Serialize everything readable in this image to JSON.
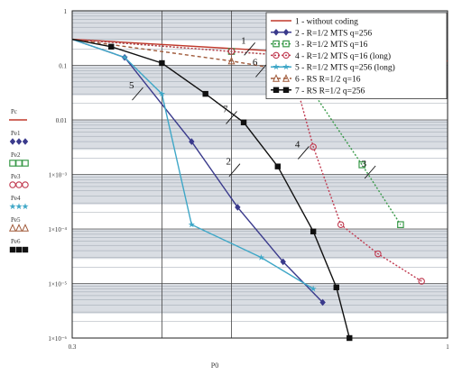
{
  "chart_data": {
    "type": "line",
    "title": "",
    "xlabel": "P0",
    "ylabel": "",
    "x_scale": "log",
    "y_scale": "log",
    "xlim": [
      0.3,
      1
    ],
    "ylim": [
      1e-06,
      1
    ],
    "grid": true,
    "legend_placement": "top-right",
    "x_tick_labels": [
      {
        "value": 0.3,
        "label": "0.3"
      },
      {
        "value": 1,
        "label": "1"
      }
    ],
    "y_tick_labels": [
      {
        "value": 1,
        "label": "1"
      },
      {
        "value": 0.1,
        "label": "0.1"
      },
      {
        "value": 0.01,
        "label": "0.01"
      },
      {
        "value": 0.001,
        "label": "1×10⁻³"
      },
      {
        "value": 0.0001,
        "label": "1×10⁻⁴"
      },
      {
        "value": 1e-05,
        "label": "1×10⁻⁵"
      },
      {
        "value": 1e-06,
        "label": "1×10⁻⁶"
      }
    ],
    "series": [
      {
        "name": "1 -  without coding",
        "color": "#c0392b",
        "dash": "solid",
        "marker": "none",
        "x": [
          0.3,
          1
        ],
        "y": [
          0.3,
          0.12
        ]
      },
      {
        "name": "2 - R=1/2 MTS  q=256",
        "color": "#3a3a8c",
        "dash": "solid",
        "marker": "diamond",
        "x": [
          0.3,
          0.355,
          0.44,
          0.51,
          0.59,
          0.67
        ],
        "y": [
          0.3,
          0.14,
          0.004,
          0.00025,
          2.5e-05,
          4.5e-06
        ]
      },
      {
        "name": "3 - R=1/2 MTS  q=16",
        "color": "#3a9a4a",
        "dash": "dot",
        "marker": "square-open",
        "x": [
          0.3,
          0.5,
          0.6,
          0.76,
          0.86
        ],
        "y": [
          0.3,
          0.18,
          0.15,
          0.0015,
          0.00012
        ]
      },
      {
        "name": "4 - R=1/2 MTS  q=16 (long)",
        "color": "#c0394f",
        "dash": "dot",
        "marker": "circle-open",
        "x": [
          0.3,
          0.5,
          0.6,
          0.65,
          0.71,
          0.8,
          0.92
        ],
        "y": [
          0.3,
          0.18,
          0.15,
          0.0032,
          0.00012,
          3.5e-05,
          1.1e-05
        ]
      },
      {
        "name": "5 - R=1/2 MTS  q=256 (long)",
        "color": "#3fa7c7",
        "dash": "solid",
        "marker": "star",
        "x": [
          0.3,
          0.355,
          0.4,
          0.44,
          0.55,
          0.65
        ],
        "y": [
          0.3,
          0.14,
          0.03,
          0.00012,
          3e-05,
          8e-06
        ]
      },
      {
        "name": "6 - RS R=1/2 q=16",
        "color": "#a05a3a",
        "dash": "dash",
        "marker": "triangle-open",
        "x": [
          0.3,
          0.5,
          0.6
        ],
        "y": [
          0.3,
          0.12,
          0.08
        ]
      },
      {
        "name": "7 - RS R=1/2 q=256",
        "color": "#111111",
        "dash": "solid",
        "marker": "square",
        "x": [
          0.3,
          0.34,
          0.4,
          0.46,
          0.52,
          0.58,
          0.65,
          0.7,
          0.73
        ],
        "y": [
          0.3,
          0.22,
          0.11,
          0.03,
          0.009,
          0.0014,
          9e-05,
          8.5e-06,
          1e-06
        ]
      }
    ],
    "curve_callouts": [
      {
        "label": "1",
        "at": [
          0.53,
          0.2
        ]
      },
      {
        "label": "2",
        "at": [
          0.505,
          0.0012
        ]
      },
      {
        "label": "3",
        "at": [
          0.78,
          0.0011
        ]
      },
      {
        "label": "4",
        "at": [
          0.63,
          0.0025
        ]
      },
      {
        "label": "5",
        "at": [
          0.37,
          0.03
        ]
      },
      {
        "label": "6",
        "at": [
          0.55,
          0.08
        ]
      },
      {
        "label": "7",
        "at": [
          0.5,
          0.011
        ]
      }
    ],
    "side_labels": [
      {
        "text": "Pc",
        "color": "#c0392b",
        "symbol": "line"
      },
      {
        "text": "Pe1",
        "color": "#3a3a8c",
        "symbol": "diamonds"
      },
      {
        "text": "Pe2",
        "color": "#3a9a4a",
        "symbol": "squares"
      },
      {
        "text": "Pe3",
        "color": "#c0394f",
        "symbol": "circles"
      },
      {
        "text": "Pe4",
        "color": "#3fa7c7",
        "symbol": "stars"
      },
      {
        "text": "Pe5",
        "color": "#a05a3a",
        "symbol": "triangles"
      },
      {
        "text": "Pe6",
        "color": "#111111",
        "symbol": "filled-squares"
      }
    ]
  }
}
